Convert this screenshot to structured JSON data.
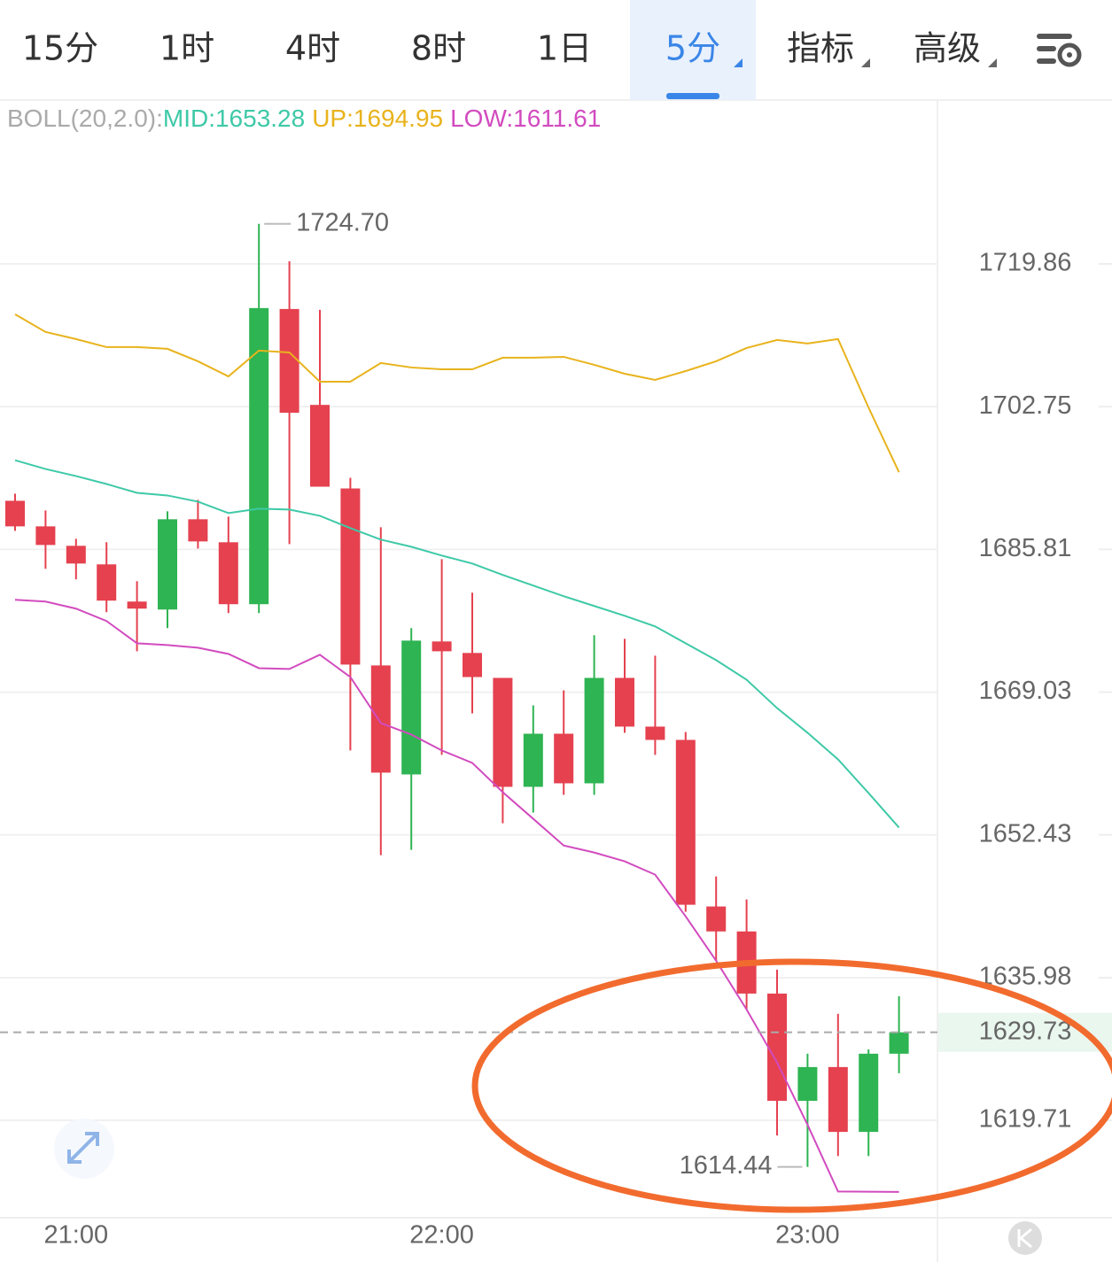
{
  "tabs": [
    "15分",
    "1时",
    "4时",
    "8时",
    "1日",
    "5分",
    "指标",
    "高级"
  ],
  "active_tab": 5,
  "chart_data": {
    "type": "candlestick",
    "indicator": "BOLL(20,2.0):",
    "log_scale": true,
    "grid": true,
    "up_color": "#2eb452",
    "down_color": "#e5414f",
    "categories": [
      null,
      null,
      "21:00",
      null,
      null,
      null,
      null,
      null,
      null,
      null,
      null,
      null,
      null,
      null,
      "22:00",
      null,
      null,
      null,
      null,
      null,
      null,
      null,
      null,
      null,
      null,
      null,
      "23:00",
      null,
      null,
      null
    ],
    "open": [
      1691.56,
      1688.53,
      1686.23,
      1684.04,
      1679.66,
      1678.72,
      1689.37,
      1686.65,
      1679.35,
      1714.44,
      1702.96,
      1693.02,
      1672.16,
      1659.44,
      1674.97,
      1673.62,
      1670.7,
      1658.0,
      1664.18,
      1658.41,
      1670.7,
      1665.01,
      1663.46,
      1644.16,
      1641.29,
      1634.16,
      1621.93,
      1625.77,
      1618.4,
      1627.29
    ],
    "high": [
      1692.4,
      1690.41,
      1687.06,
      1686.65,
      1682.06,
      1690.31,
      1691.67,
      1689.68,
      1724.7,
      1720.18,
      1714.33,
      1694.28,
      1688.42,
      1676.53,
      1684.66,
      1680.7,
      1670.7,
      1667.48,
      1669.24,
      1675.7,
      1675.28,
      1673.3,
      1664.39,
      1647.63,
      1644.97,
      1636.9,
      1627.29,
      1631.84,
      1627.79,
      1633.86
    ],
    "low": [
      1688.0,
      1683.52,
      1682.27,
      1678.41,
      1673.82,
      1676.53,
      1685.91,
      1678.3,
      1678.3,
      1686.44,
      1693.23,
      1662.23,
      1650.08,
      1650.69,
      1661.71,
      1666.56,
      1653.77,
      1655.01,
      1657.07,
      1657.07,
      1664.29,
      1661.71,
      1643.54,
      1637.92,
      1632.34,
      1617.99,
      1614.44,
      1615.67,
      1615.67,
      1625.06
    ],
    "close": [
      1688.53,
      1686.33,
      1684.14,
      1679.77,
      1678.83,
      1689.37,
      1686.75,
      1679.35,
      1714.55,
      1702.02,
      1693.23,
      1672.26,
      1659.65,
      1675.07,
      1673.82,
      1670.8,
      1658.0,
      1664.18,
      1658.41,
      1670.7,
      1665.01,
      1663.46,
      1644.36,
      1641.29,
      1634.16,
      1621.93,
      1625.77,
      1618.4,
      1627.29,
      1629.73
    ],
    "series": [
      {
        "name": "MID:",
        "color": "#3ec9a7",
        "values": [
          1696.37,
          1695.33,
          1694.49,
          1693.55,
          1692.5,
          1692.19,
          1691.46,
          1690.1,
          1690.62,
          1690.52,
          1689.78,
          1688.32,
          1686.96,
          1686.12,
          1685.08,
          1684.14,
          1682.79,
          1681.54,
          1680.29,
          1679.14,
          1677.99,
          1676.74,
          1674.76,
          1672.78,
          1670.49,
          1667.17,
          1664.29,
          1661.19,
          1657.28,
          1653.28
        ]
      },
      {
        "name": "UP:",
        "color": "#e8b31c",
        "values": [
          1713.8,
          1711.68,
          1710.83,
          1709.87,
          1709.87,
          1709.66,
          1708.17,
          1706.36,
          1709.45,
          1709.23,
          1705.73,
          1705.73,
          1707.96,
          1707.43,
          1707.21,
          1707.21,
          1708.6,
          1708.6,
          1708.7,
          1707.75,
          1706.68,
          1705.94,
          1707.0,
          1708.17,
          1709.76,
          1710.72,
          1710.3,
          1710.83,
          1702.65,
          1694.95
        ]
      },
      {
        "name": "LOW:",
        "color": "#d24bbf",
        "values": [
          1679.87,
          1679.66,
          1678.83,
          1677.37,
          1674.76,
          1674.55,
          1674.24,
          1673.51,
          1671.84,
          1671.74,
          1673.41,
          1670.8,
          1665.42,
          1664.08,
          1662.23,
          1660.78,
          1657.38,
          1654.29,
          1651.2,
          1650.39,
          1649.37,
          1647.83,
          1643.03,
          1637.92,
          1632.34,
          1626.28,
          1619.21,
          1611.66,
          1611.63,
          1611.61
        ]
      }
    ],
    "max_label": {
      "value": 1724.7,
      "label": "1724.70"
    },
    "ylim": [
      1608.7,
      1739.5
    ],
    "yticks": [
      1719.86,
      1702.75,
      1685.81,
      1669.03,
      1652.43,
      1635.98,
      1619.71
    ]
  }
}
